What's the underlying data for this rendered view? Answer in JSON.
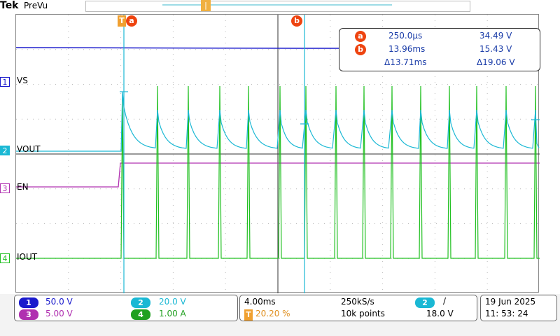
{
  "header": {
    "brand": "Tek",
    "mode": "PreVu",
    "trigger_position_icon": "trigger-position-marker"
  },
  "channels": {
    "ch1": {
      "number": "1",
      "name": "VS",
      "color": "#1a1acc"
    },
    "ch2": {
      "number": "2",
      "name": "VOUT",
      "color": "#1ab8d4"
    },
    "ch3": {
      "number": "3",
      "name": "EN",
      "color": "#b030b0"
    },
    "ch4": {
      "number": "4",
      "name": "IOUT",
      "color": "#20c020"
    }
  },
  "cursors": {
    "a": {
      "label": "a",
      "time": "250.0µs",
      "volts": "34.49 V"
    },
    "b": {
      "label": "b",
      "time": "13.96ms",
      "volts": "15.43 V"
    },
    "delta": {
      "time": "Δ13.71ms",
      "volts": "Δ19.06 V"
    },
    "trigger_badge": "T"
  },
  "bottom": {
    "scales": {
      "ch1": "50.0 V",
      "ch2": "20.0 V",
      "ch3": "5.00 V",
      "ch4": "1.00 A"
    },
    "timebase": "4.00ms",
    "sample_rate": "250kS/s",
    "trigger_pos": "20.20 %",
    "record": "10k points",
    "trigger_channel": "2",
    "trigger_slope": "/",
    "trigger_level": "18.0 V",
    "date": "19 Jun  2025",
    "time": "11: 53: 24"
  }
}
